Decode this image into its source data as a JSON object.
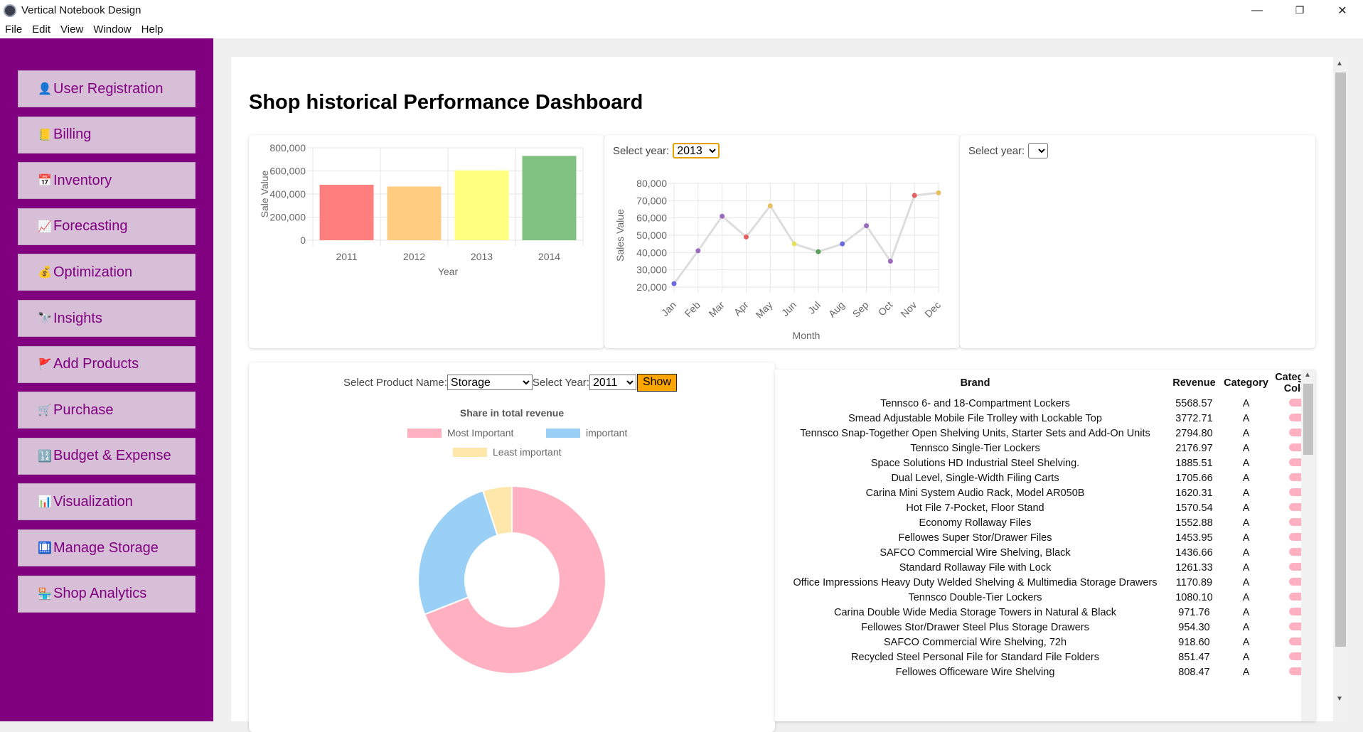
{
  "window": {
    "title": "Vertical Notebook Design",
    "minimize": "—",
    "maximize": "❐",
    "close": "✕"
  },
  "menu": [
    "File",
    "Edit",
    "View",
    "Window",
    "Help"
  ],
  "sidebar": {
    "items": [
      {
        "label": "User Registration",
        "icon": "user-icon",
        "glyph": "👤"
      },
      {
        "label": "Billing",
        "icon": "notepad-icon",
        "glyph": "📒"
      },
      {
        "label": "Inventory",
        "icon": "calendar-icon",
        "glyph": "📅"
      },
      {
        "label": "Forecasting",
        "icon": "trend-icon",
        "glyph": "📈"
      },
      {
        "label": "Optimization",
        "icon": "money-bag-icon",
        "glyph": "💰"
      },
      {
        "label": "Insights",
        "icon": "telescope-icon",
        "glyph": "🔭"
      },
      {
        "label": "Add Products",
        "icon": "flag-icon",
        "glyph": "🚩"
      },
      {
        "label": "Purchase",
        "icon": "cart-icon",
        "glyph": "🛒"
      },
      {
        "label": "Budget & Expense",
        "icon": "numbers-icon",
        "glyph": "🔢"
      },
      {
        "label": "Visualization",
        "icon": "bar-chart-icon",
        "glyph": "📊"
      },
      {
        "label": "Manage Storage",
        "icon": "storage-icon",
        "glyph": "🛄"
      },
      {
        "label": "Shop Analytics",
        "icon": "shop-icon",
        "glyph": "🏪"
      }
    ]
  },
  "page": {
    "title": "Shop historical Performance Dashboard"
  },
  "line_panel": {
    "select_label": "Select year:",
    "selected_year": "2013"
  },
  "empty_panel": {
    "select_label": "Select year:",
    "selected_year": ""
  },
  "donut_panel": {
    "product_label": "Select Product Name:",
    "product_value": "Storage",
    "year_label": "Select Year:",
    "year_value": "2011",
    "show_button": "Show"
  },
  "chart_data": [
    {
      "type": "bar",
      "categories": [
        "2011",
        "2012",
        "2013",
        "2014"
      ],
      "values": [
        480000,
        465000,
        605000,
        730000
      ],
      "colors": [
        "#ff7f7f",
        "#ffcc80",
        "#ffff80",
        "#80c080"
      ],
      "title": "",
      "xlabel": "Year",
      "ylabel": "Sale Value",
      "ylim": [
        0,
        800000
      ],
      "yticks": [
        "0",
        "200,000",
        "400,000",
        "600,000",
        "800,000"
      ],
      "grid": true
    },
    {
      "type": "line",
      "categories": [
        "Jan",
        "Feb",
        "Mar",
        "Apr",
        "May",
        "Jun",
        "Jul",
        "Aug",
        "Sep",
        "Oct",
        "Nov",
        "Dec"
      ],
      "values": [
        22000,
        41000,
        61000,
        49000,
        67000,
        45000,
        40500,
        45000,
        55500,
        35000,
        73000,
        74500
      ],
      "point_colors": [
        "#6b6be0",
        "#9a6bc0",
        "#9a6bc0",
        "#e06060",
        "#e8c060",
        "#e8e060",
        "#5aa05a",
        "#6b6be0",
        "#9a6bc0",
        "#9a6bc0",
        "#e06060",
        "#e8c060"
      ],
      "line_color": "#dddddd",
      "xlabel": "Month",
      "ylabel": "Sales Value",
      "ylim": [
        20000,
        80000
      ],
      "yticks": [
        "20,000",
        "30,000",
        "40,000",
        "50,000",
        "60,000",
        "70,000",
        "80,000"
      ],
      "grid": true
    },
    {
      "type": "pie",
      "title": "Share in total revenue",
      "legend": [
        "Most Important",
        "important",
        "Least important"
      ],
      "values": [
        69,
        26,
        5
      ],
      "colors": [
        "#ffb1c1",
        "#9ad0f5",
        "#ffe6aa"
      ],
      "donut": true,
      "legend_position": "top"
    }
  ],
  "brand_table": {
    "headers": [
      "Brand",
      "Revenue",
      "Category",
      "Category Color"
    ],
    "rows": [
      {
        "brand": "Tennsco 6- and 18-Compartment Lockers",
        "revenue": "5568.57",
        "category": "A"
      },
      {
        "brand": "Smead Adjustable Mobile File Trolley with Lockable Top",
        "revenue": "3772.71",
        "category": "A"
      },
      {
        "brand": "Tennsco Snap-Together Open Shelving Units, Starter Sets and Add-On Units",
        "revenue": "2794.80",
        "category": "A"
      },
      {
        "brand": "Tennsco Single-Tier Lockers",
        "revenue": "2176.97",
        "category": "A"
      },
      {
        "brand": "Space Solutions HD Industrial Steel Shelving.",
        "revenue": "1885.51",
        "category": "A"
      },
      {
        "brand": "Dual Level, Single-Width Filing Carts",
        "revenue": "1705.66",
        "category": "A"
      },
      {
        "brand": "Carina Mini System Audio Rack, Model AR050B",
        "revenue": "1620.31",
        "category": "A"
      },
      {
        "brand": "Hot File 7-Pocket, Floor Stand",
        "revenue": "1570.54",
        "category": "A"
      },
      {
        "brand": "Economy Rollaway Files",
        "revenue": "1552.88",
        "category": "A"
      },
      {
        "brand": "Fellowes Super Stor/Drawer Files",
        "revenue": "1453.95",
        "category": "A"
      },
      {
        "brand": "SAFCO Commercial Wire Shelving, Black",
        "revenue": "1436.66",
        "category": "A"
      },
      {
        "brand": "Standard Rollaway File with Lock",
        "revenue": "1261.33",
        "category": "A"
      },
      {
        "brand": "Office Impressions Heavy Duty Welded Shelving & Multimedia Storage Drawers",
        "revenue": "1170.89",
        "category": "A"
      },
      {
        "brand": "Tennsco Double-Tier Lockers",
        "revenue": "1080.10",
        "category": "A"
      },
      {
        "brand": "Carina Double Wide Media Storage Towers in Natural & Black",
        "revenue": "971.76",
        "category": "A"
      },
      {
        "brand": "Fellowes Stor/Drawer Steel Plus Storage Drawers",
        "revenue": "954.30",
        "category": "A"
      },
      {
        "brand": "SAFCO Commercial Wire Shelving, 72h",
        "revenue": "918.60",
        "category": "A"
      },
      {
        "brand": "Recycled Steel Personal File for Standard File Folders",
        "revenue": "851.47",
        "category": "A"
      },
      {
        "brand": "Fellowes Officeware Wire Shelving",
        "revenue": "808.47",
        "category": "A"
      }
    ],
    "swatch_color": "#ffb1c1"
  }
}
